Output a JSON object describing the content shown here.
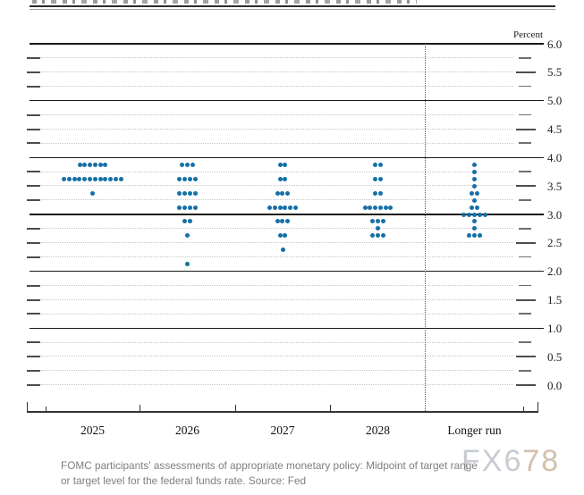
{
  "chart_data": {
    "type": "scatter",
    "subtype": "fomc-dot-plot",
    "unit_label": "Percent",
    "y_axis": {
      "min": 0.0,
      "max": 6.0,
      "grid_step": 0.25,
      "label_step": 0.5,
      "tick_labels": [
        "6.0",
        "5.5",
        "5.0",
        "4.5",
        "4.0",
        "3.5",
        "3.0",
        "2.5",
        "2.0",
        "1.5",
        "1.0",
        "0.5",
        "0.0"
      ],
      "solid_lines_at": [
        6.0,
        5.0,
        4.0,
        3.0,
        2.0,
        1.0
      ],
      "grid_on": true
    },
    "categories": [
      "2025",
      "2026",
      "2027",
      "2028",
      "Longer run"
    ],
    "separator_before_category": "Longer run",
    "dots": [
      {
        "category": "2025",
        "values": [
          {
            "rate": 3.875,
            "count": 6
          },
          {
            "rate": 3.625,
            "count": 12
          },
          {
            "rate": 3.375,
            "count": 1
          }
        ]
      },
      {
        "category": "2026",
        "values": [
          {
            "rate": 3.875,
            "count": 3
          },
          {
            "rate": 3.625,
            "count": 4
          },
          {
            "rate": 3.375,
            "count": 4
          },
          {
            "rate": 3.125,
            "count": 4
          },
          {
            "rate": 2.875,
            "count": 2
          },
          {
            "rate": 2.625,
            "count": 1
          },
          {
            "rate": 2.125,
            "count": 1
          }
        ]
      },
      {
        "category": "2027",
        "values": [
          {
            "rate": 3.875,
            "count": 2
          },
          {
            "rate": 3.625,
            "count": 2
          },
          {
            "rate": 3.375,
            "count": 3
          },
          {
            "rate": 3.125,
            "count": 6
          },
          {
            "rate": 2.875,
            "count": 3
          },
          {
            "rate": 2.625,
            "count": 2
          },
          {
            "rate": 2.375,
            "count": 1
          }
        ]
      },
      {
        "category": "2028",
        "values": [
          {
            "rate": 3.875,
            "count": 2
          },
          {
            "rate": 3.625,
            "count": 2
          },
          {
            "rate": 3.375,
            "count": 2
          },
          {
            "rate": 3.125,
            "count": 6
          },
          {
            "rate": 2.875,
            "count": 3
          },
          {
            "rate": 2.75,
            "count": 1
          },
          {
            "rate": 2.625,
            "count": 3
          }
        ]
      },
      {
        "category": "Longer run",
        "values": [
          {
            "rate": 3.875,
            "count": 1
          },
          {
            "rate": 3.75,
            "count": 1
          },
          {
            "rate": 3.625,
            "count": 1
          },
          {
            "rate": 3.5,
            "count": 1
          },
          {
            "rate": 3.375,
            "count": 2
          },
          {
            "rate": 3.25,
            "count": 1
          },
          {
            "rate": 3.125,
            "count": 2
          },
          {
            "rate": 3.0,
            "count": 5
          },
          {
            "rate": 2.875,
            "count": 1
          },
          {
            "rate": 2.75,
            "count": 1
          },
          {
            "rate": 2.625,
            "count": 3
          }
        ]
      }
    ]
  },
  "colors": {
    "dot": "#1470a6",
    "watermark_a": "#c8ccd1",
    "watermark_b": "#d2c0aa"
  },
  "footer": {
    "caption_line1": "FOMC participants' assessments of appropriate monetary policy: Midpoint of target range",
    "caption_line2": "or target level for the federal funds rate. Source: Fed",
    "watermark_a": "FX6",
    "watermark_b": "78"
  }
}
